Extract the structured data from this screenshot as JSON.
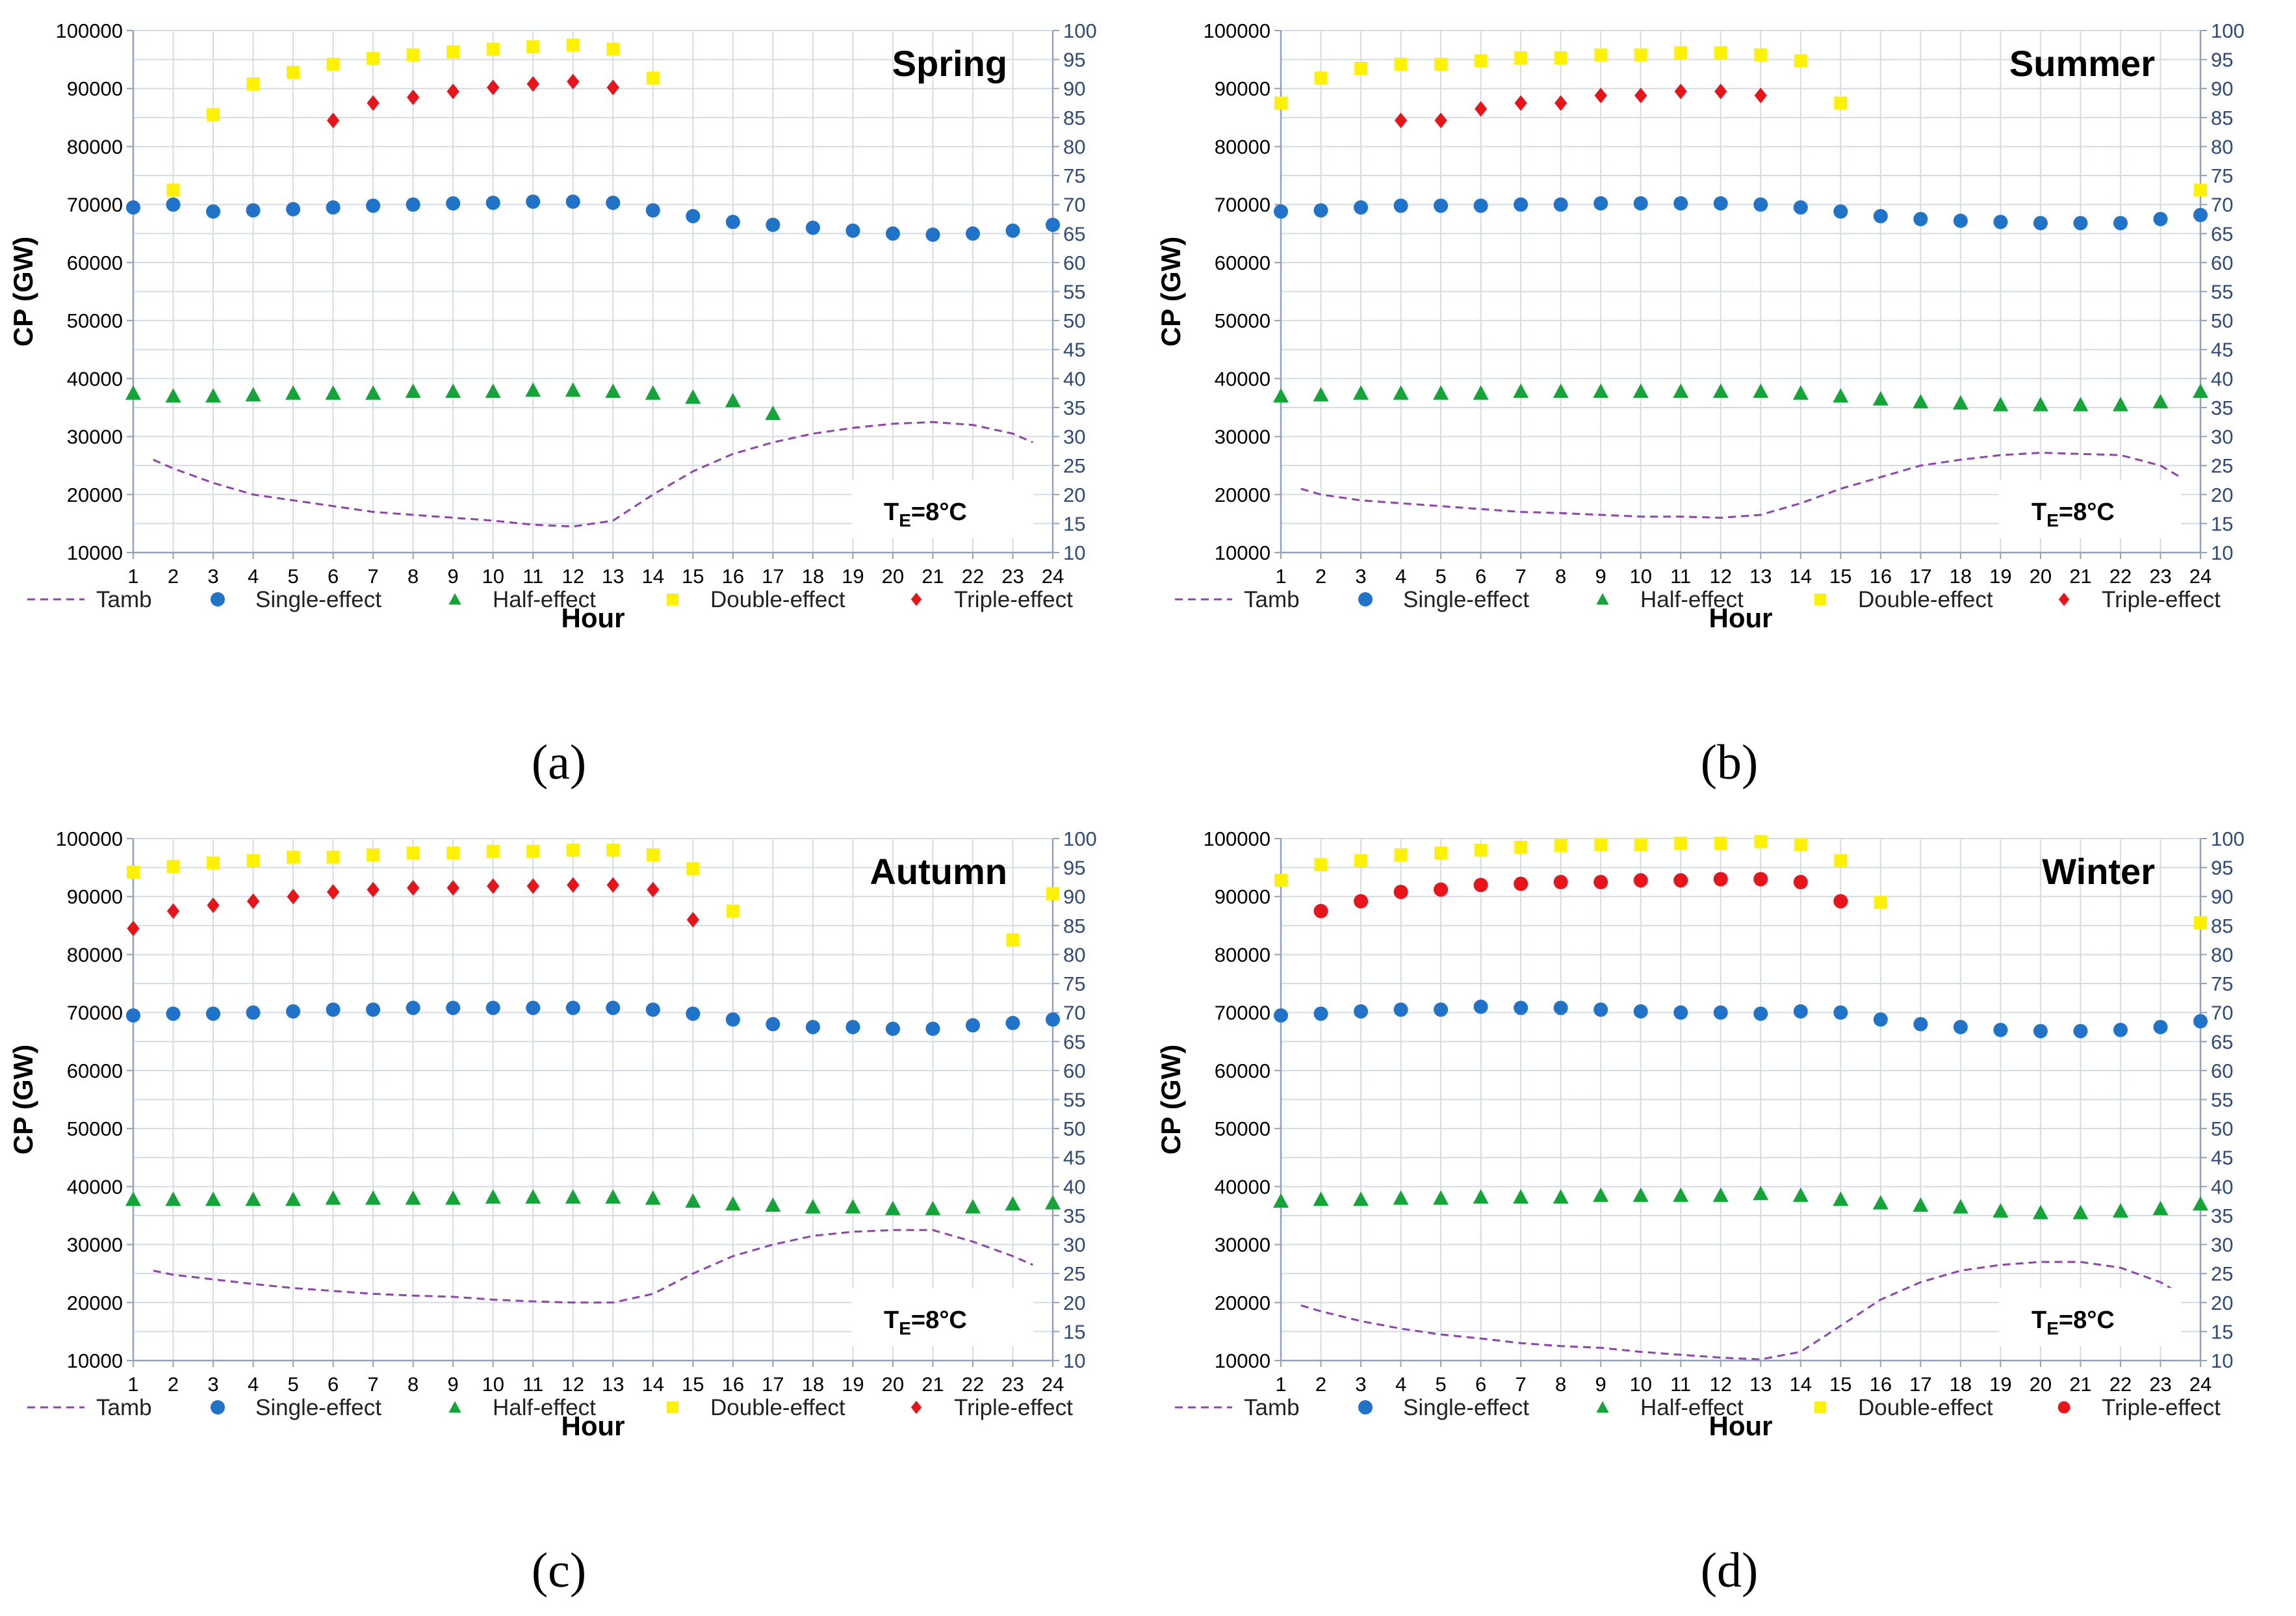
{
  "figure": {
    "axis": {
      "x_ticks": [
        "1",
        "2",
        "3",
        "4",
        "5",
        "6",
        "7",
        "8",
        "9",
        "10",
        "11",
        "12",
        "13",
        "14",
        "15",
        "16",
        "17",
        "18",
        "19",
        "20",
        "21",
        "22",
        "23",
        "24"
      ],
      "left_ticks": [
        "10000",
        "20000",
        "30000",
        "40000",
        "50000",
        "60000",
        "70000",
        "80000",
        "90000",
        "100000"
      ],
      "right_ticks": [
        "10",
        "15",
        "20",
        "25",
        "30",
        "35",
        "40",
        "45",
        "50",
        "55",
        "60",
        "65",
        "70",
        "75",
        "80",
        "85",
        "90",
        "95",
        "100"
      ]
    },
    "legend": {
      "tamb": "Tamb",
      "single": "Single-effect",
      "half": "Half-effect",
      "double": "Double-effect",
      "triple": "Triple-effect"
    },
    "annotation": {
      "te_main": "T",
      "te_sub": "E",
      "te_rest": "=8°C"
    },
    "colors": {
      "tamb": "#8E44AD",
      "single": "#1F73C8",
      "half": "#13A537",
      "double": "#FFF200",
      "triple": "#E8141A",
      "grid": "#D6DCE5",
      "right_axis": "#2F4A7A"
    }
  },
  "chart_data": [
    {
      "type": "scatter",
      "panel_label": "(a)",
      "title": "Spring",
      "xlabel": "Hour",
      "ylabel": "CP (GW)",
      "ylim": [
        10000,
        100000
      ],
      "y2lim": [
        10,
        100
      ],
      "x": [
        1,
        2,
        3,
        4,
        5,
        6,
        7,
        8,
        9,
        10,
        11,
        12,
        13,
        14,
        15,
        16,
        17,
        18,
        19,
        20,
        21,
        22,
        23,
        24
      ],
      "tamb": {
        "x": [
          1.5,
          2,
          3,
          4,
          5,
          6,
          7,
          8,
          9,
          10,
          11,
          12,
          13,
          14,
          15,
          16,
          17,
          18,
          19,
          20,
          21,
          22,
          23,
          23.5
        ],
        "values": [
          26,
          24.5,
          22,
          20,
          19,
          18,
          17,
          16.5,
          16,
          15.5,
          14.8,
          14.5,
          15.5,
          20,
          24,
          27,
          29,
          30.5,
          31.5,
          32.2,
          32.5,
          32,
          30.5,
          29
        ]
      },
      "single": {
        "x": [
          1,
          2,
          3,
          4,
          5,
          6,
          7,
          8,
          9,
          10,
          11,
          12,
          13,
          14,
          15,
          16,
          17,
          18,
          19,
          20,
          21,
          22,
          23,
          24
        ],
        "values": [
          69.5,
          70,
          68.8,
          69,
          69.2,
          69.5,
          69.8,
          70,
          70.2,
          70.3,
          70.5,
          70.5,
          70.3,
          69,
          68,
          67,
          66.5,
          66,
          65.5,
          65,
          64.8,
          65,
          65.5,
          66.5
        ]
      },
      "half": {
        "x": [
          1,
          2,
          3,
          4,
          5,
          6,
          7,
          8,
          9,
          10,
          11,
          12,
          13,
          14,
          15,
          16,
          17
        ],
        "values": [
          37.5,
          37,
          37,
          37.2,
          37.5,
          37.5,
          37.5,
          37.8,
          37.8,
          37.8,
          38,
          38,
          37.8,
          37.5,
          36.8,
          36.2,
          34
        ]
      },
      "double": {
        "x": [
          2,
          3,
          4,
          5,
          6,
          7,
          8,
          9,
          10,
          11,
          12,
          13,
          14
        ],
        "values": [
          72.5,
          85.5,
          90.8,
          92.8,
          94.2,
          95.2,
          95.8,
          96.3,
          96.8,
          97.2,
          97.5,
          96.8,
          91.8
        ]
      },
      "triple": {
        "x": [
          6,
          7,
          8,
          9,
          10,
          11,
          12,
          13
        ],
        "values": [
          84.5,
          87.5,
          88.5,
          89.5,
          90.2,
          90.8,
          91.2,
          90.2
        ]
      },
      "triple_marker": "diamond"
    },
    {
      "type": "scatter",
      "panel_label": "(b)",
      "title": "Summer",
      "xlabel": "Hour",
      "ylabel": "CP (GW)",
      "ylim": [
        10000,
        100000
      ],
      "y2lim": [
        10,
        100
      ],
      "x": [
        1,
        2,
        3,
        4,
        5,
        6,
        7,
        8,
        9,
        10,
        11,
        12,
        13,
        14,
        15,
        16,
        17,
        18,
        19,
        20,
        21,
        22,
        23,
        24
      ],
      "tamb": {
        "x": [
          1.5,
          2,
          3,
          4,
          5,
          6,
          7,
          8,
          9,
          10,
          11,
          12,
          13,
          14,
          15,
          16,
          17,
          18,
          19,
          20,
          21,
          22,
          23,
          23.5
        ],
        "values": [
          21,
          20,
          19,
          18.5,
          18,
          17.5,
          17,
          16.8,
          16.5,
          16.2,
          16.2,
          16,
          16.5,
          18.5,
          21,
          23,
          25,
          26,
          26.8,
          27.2,
          27,
          26.8,
          25,
          23
        ]
      },
      "single": {
        "x": [
          1,
          2,
          3,
          4,
          5,
          6,
          7,
          8,
          9,
          10,
          11,
          12,
          13,
          14,
          15,
          16,
          17,
          18,
          19,
          20,
          21,
          22,
          23,
          24
        ],
        "values": [
          68.8,
          69,
          69.5,
          69.8,
          69.8,
          69.8,
          70,
          70,
          70.2,
          70.2,
          70.2,
          70.2,
          70,
          69.5,
          68.8,
          68,
          67.5,
          67.2,
          67,
          66.8,
          66.8,
          66.8,
          67.5,
          68.2
        ]
      },
      "half": {
        "x": [
          1,
          2,
          3,
          4,
          5,
          6,
          7,
          8,
          9,
          10,
          11,
          12,
          13,
          14,
          15,
          16,
          17,
          18,
          19,
          20,
          21,
          22,
          23,
          24
        ],
        "values": [
          37,
          37.2,
          37.5,
          37.5,
          37.5,
          37.5,
          37.8,
          37.8,
          37.8,
          37.8,
          37.8,
          37.8,
          37.8,
          37.5,
          37,
          36.5,
          36,
          35.8,
          35.5,
          35.5,
          35.5,
          35.5,
          36,
          37.8
        ]
      },
      "double": {
        "x": [
          1,
          2,
          3,
          4,
          5,
          6,
          7,
          8,
          9,
          10,
          11,
          12,
          13,
          14,
          15,
          24
        ],
        "values": [
          87.5,
          91.8,
          93.5,
          94.2,
          94.2,
          94.8,
          95.3,
          95.3,
          95.8,
          95.8,
          96.2,
          96.2,
          95.8,
          94.8,
          87.5,
          72.5
        ]
      },
      "triple": {
        "x": [
          4,
          5,
          6,
          7,
          8,
          9,
          10,
          11,
          12,
          13
        ],
        "values": [
          84.5,
          84.5,
          86.5,
          87.5,
          87.5,
          88.8,
          88.8,
          89.5,
          89.5,
          88.8
        ]
      },
      "triple_marker": "diamond"
    },
    {
      "type": "scatter",
      "panel_label": "(c)",
      "title": "Autumn",
      "xlabel": "Hour",
      "ylabel": "CP (GW)",
      "ylim": [
        10000,
        100000
      ],
      "y2lim": [
        10,
        100
      ],
      "x": [
        1,
        2,
        3,
        4,
        5,
        6,
        7,
        8,
        9,
        10,
        11,
        12,
        13,
        14,
        15,
        16,
        17,
        18,
        19,
        20,
        21,
        22,
        23,
        24
      ],
      "tamb": {
        "x": [
          1.5,
          2,
          3,
          4,
          5,
          6,
          7,
          8,
          9,
          10,
          11,
          12,
          13,
          14,
          15,
          16,
          17,
          18,
          19,
          20,
          21,
          22,
          23,
          23.5
        ],
        "values": [
          25.5,
          24.8,
          24,
          23.2,
          22.5,
          22,
          21.5,
          21.2,
          21,
          20.5,
          20.2,
          20,
          20,
          21.5,
          25,
          28,
          30,
          31.5,
          32.2,
          32.5,
          32.5,
          30.5,
          28,
          26.5
        ]
      },
      "single": {
        "x": [
          1,
          2,
          3,
          4,
          5,
          6,
          7,
          8,
          9,
          10,
          11,
          12,
          13,
          14,
          15,
          16,
          17,
          18,
          19,
          20,
          21,
          22,
          23,
          24
        ],
        "values": [
          69.5,
          69.8,
          69.8,
          70,
          70.2,
          70.5,
          70.5,
          70.8,
          70.8,
          70.8,
          70.8,
          70.8,
          70.8,
          70.5,
          69.8,
          68.8,
          68,
          67.5,
          67.5,
          67.2,
          67.2,
          67.8,
          68.2,
          68.8
        ]
      },
      "half": {
        "x": [
          1,
          2,
          3,
          4,
          5,
          6,
          7,
          8,
          9,
          10,
          11,
          12,
          13,
          14,
          15,
          16,
          17,
          18,
          19,
          20,
          21,
          22,
          23,
          24
        ],
        "values": [
          37.8,
          37.8,
          37.8,
          37.8,
          37.8,
          38,
          38,
          38,
          38,
          38.2,
          38.2,
          38.2,
          38.2,
          38,
          37.5,
          37,
          36.8,
          36.5,
          36.5,
          36.2,
          36.2,
          36.5,
          37,
          37.2
        ]
      },
      "double": {
        "x": [
          1,
          2,
          3,
          4,
          5,
          6,
          7,
          8,
          9,
          10,
          11,
          12,
          13,
          14,
          15,
          16,
          23,
          24
        ],
        "values": [
          94.2,
          95.2,
          95.8,
          96.2,
          96.8,
          96.8,
          97.2,
          97.5,
          97.5,
          97.8,
          97.8,
          98,
          98,
          97.2,
          94.8,
          87.5,
          82.5,
          90.5
        ]
      },
      "triple": {
        "x": [
          1,
          2,
          3,
          4,
          5,
          6,
          7,
          8,
          9,
          10,
          11,
          12,
          13,
          14,
          15
        ],
        "values": [
          84.5,
          87.5,
          88.5,
          89.2,
          90,
          90.8,
          91.2,
          91.5,
          91.5,
          91.8,
          91.8,
          92,
          92,
          91.2,
          86
        ]
      },
      "triple_marker": "diamond"
    },
    {
      "type": "scatter",
      "panel_label": "(d)",
      "title": "Winter",
      "xlabel": "Hour",
      "ylabel": "CP (GW)",
      "ylim": [
        10000,
        100000
      ],
      "y2lim": [
        10,
        100
      ],
      "x": [
        1,
        2,
        3,
        4,
        5,
        6,
        7,
        8,
        9,
        10,
        11,
        12,
        13,
        14,
        15,
        16,
        17,
        18,
        19,
        20,
        21,
        22,
        23,
        24
      ],
      "tamb": {
        "x": [
          1.5,
          2,
          3,
          4,
          5,
          6,
          7,
          8,
          9,
          10,
          11,
          12,
          13,
          14,
          15,
          16,
          17,
          18,
          19,
          20,
          21,
          22,
          23,
          23.5
        ],
        "values": [
          19.5,
          18.5,
          16.8,
          15.5,
          14.5,
          13.8,
          13,
          12.5,
          12.2,
          11.5,
          11,
          10.5,
          10.2,
          11.5,
          16,
          20.5,
          23.5,
          25.5,
          26.5,
          27,
          27,
          26,
          23.5,
          21.5
        ]
      },
      "single": {
        "x": [
          1,
          2,
          3,
          4,
          5,
          6,
          7,
          8,
          9,
          10,
          11,
          12,
          13,
          14,
          15,
          16,
          17,
          18,
          19,
          20,
          21,
          22,
          23,
          24
        ],
        "values": [
          69.5,
          69.8,
          70.2,
          70.5,
          70.5,
          71,
          70.8,
          70.8,
          70.5,
          70.2,
          70,
          70,
          69.8,
          70.2,
          70,
          68.8,
          68,
          67.5,
          67,
          66.8,
          66.8,
          67,
          67.5,
          68.5
        ]
      },
      "half": {
        "x": [
          1,
          2,
          3,
          4,
          5,
          6,
          7,
          8,
          9,
          10,
          11,
          12,
          13,
          14,
          15,
          16,
          17,
          18,
          19,
          20,
          21,
          22,
          23,
          24
        ],
        "values": [
          37.5,
          37.8,
          37.8,
          38,
          38,
          38.2,
          38.2,
          38.2,
          38.5,
          38.5,
          38.5,
          38.5,
          38.8,
          38.5,
          37.8,
          37.2,
          36.8,
          36.5,
          35.8,
          35.5,
          35.5,
          35.8,
          36.2,
          37
        ]
      },
      "double": {
        "x": [
          1,
          2,
          3,
          4,
          5,
          6,
          7,
          8,
          9,
          10,
          11,
          12,
          13,
          14,
          15,
          16,
          24
        ],
        "values": [
          92.8,
          95.5,
          96.2,
          97.2,
          97.5,
          98,
          98.5,
          98.8,
          99,
          99,
          99.2,
          99.2,
          99.5,
          99,
          96.2,
          89,
          85.5
        ]
      },
      "triple": {
        "x": [
          2,
          3,
          4,
          5,
          6,
          7,
          8,
          9,
          10,
          11,
          12,
          13,
          14,
          15
        ],
        "values": [
          87.5,
          89.2,
          90.8,
          91.2,
          92,
          92.2,
          92.5,
          92.5,
          92.8,
          92.8,
          93,
          93,
          92.5,
          89.2
        ]
      },
      "triple_marker": "circle"
    }
  ]
}
